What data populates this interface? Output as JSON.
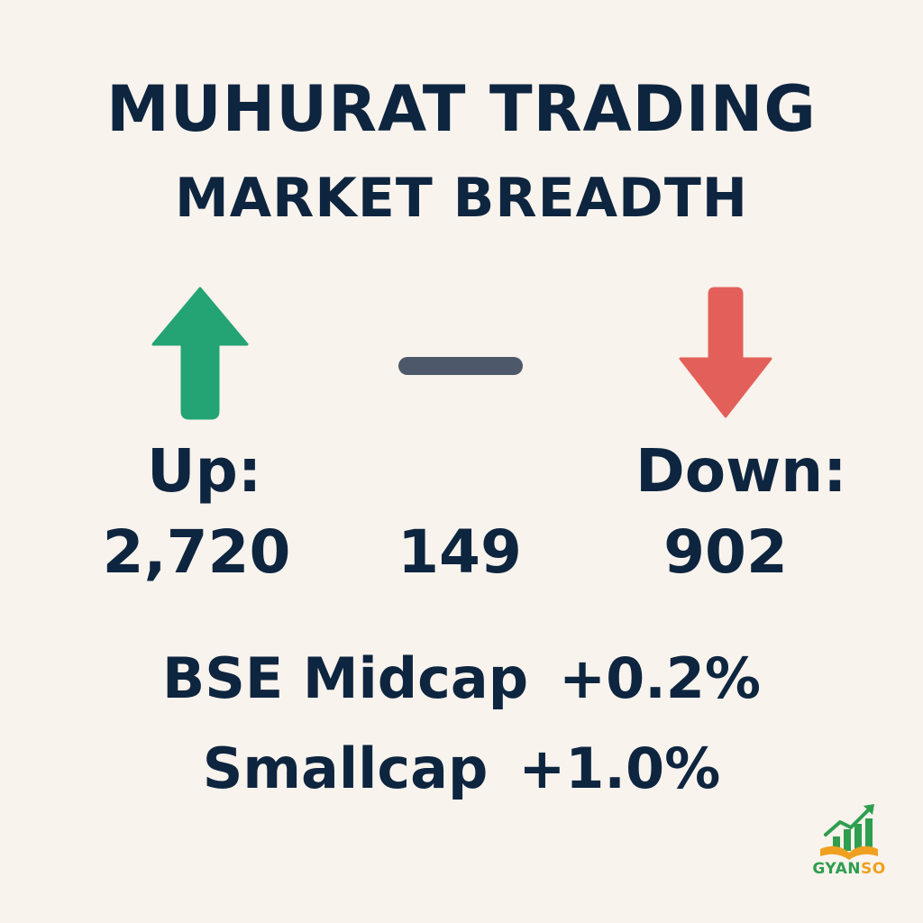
{
  "title": {
    "line1": "MUHURAT TRADING",
    "line2": "MARKET BREADTH"
  },
  "breadth": {
    "up": {
      "label": "Up:",
      "value": "2,720",
      "icon": "up-arrow-icon",
      "color": "#24a374"
    },
    "unchanged": {
      "value": "149",
      "icon": "dash-icon",
      "color": "#4d596a"
    },
    "down": {
      "label": "Down:",
      "value": "902",
      "icon": "down-arrow-icon",
      "color": "#e3605a"
    }
  },
  "indices": [
    {
      "name": "BSE Midcap",
      "change": "+0.2%"
    },
    {
      "name": "Smallcap",
      "change": "+1.0%"
    }
  ],
  "logo": {
    "text_part1": "GYAN",
    "text_part2": "SO",
    "icon": "rising-chart-book-icon",
    "colors": {
      "green": "#2e9e4f",
      "orange": "#f0a020"
    }
  }
}
